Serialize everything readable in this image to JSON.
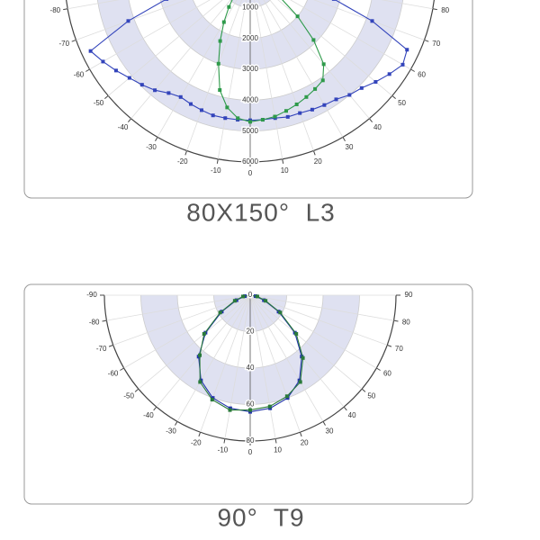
{
  "chart_data": [
    {
      "type": "polar",
      "title": "80X150°  L3",
      "x": [
        -75,
        -70,
        -65,
        -60,
        -55,
        -50,
        -45,
        -40,
        -35,
        -30,
        -25,
        -20,
        -15,
        -10,
        -5,
        0,
        5,
        10,
        15,
        20,
        25,
        30,
        35,
        40,
        45,
        50,
        55,
        60,
        65,
        70,
        75
      ],
      "series": [
        {
          "color": "#3344bb",
          "values": [
            2800,
            4200,
            5700,
            5500,
            5300,
            5100,
            4950,
            4800,
            4600,
            4500,
            4550,
            4600,
            4650,
            4650,
            4650,
            4650,
            4650,
            4650,
            4700,
            4700,
            4750,
            4800,
            4850,
            5000,
            5100,
            5300,
            5500,
            5700,
            5600,
            4200,
            2800
          ]
        },
        {
          "color": "#2e9a4a",
          "values": [
            null,
            null,
            null,
            null,
            null,
            null,
            null,
            800,
            1200,
            1700,
            2300,
            3000,
            3800,
            4300,
            4600,
            4700,
            4650,
            4600,
            4500,
            4400,
            4300,
            4200,
            4100,
            3700,
            2900,
            2000,
            1200,
            null,
            null,
            null,
            null
          ]
        }
      ],
      "ylim": [
        0,
        6000
      ],
      "yticks": [
        1000,
        2000,
        3000,
        4000,
        5000,
        6000
      ],
      "xticks": [
        -80,
        -70,
        -60,
        -50,
        -40,
        -30,
        -20,
        -10,
        0,
        10,
        20,
        30,
        40,
        50,
        60,
        70,
        80
      ]
    },
    {
      "type": "polar",
      "title": "90°  T9",
      "x": [
        -90,
        -80,
        -70,
        -60,
        -50,
        -40,
        -30,
        -20,
        -10,
        0,
        10,
        20,
        30,
        40,
        50,
        60,
        70,
        80,
        90
      ],
      "series": [
        {
          "color": "#2233aa",
          "values": [
            0,
            3,
            8,
            18,
            32,
            44,
            54,
            60,
            63,
            64,
            63,
            60,
            54,
            44,
            32,
            18,
            8,
            3,
            0
          ]
        },
        {
          "color": "#2a7a3a",
          "values": [
            0,
            4,
            9,
            19,
            33,
            43,
            55,
            61,
            64,
            63,
            62,
            59,
            55,
            45,
            33,
            19,
            9,
            4,
            0
          ]
        }
      ],
      "ylim": [
        0,
        80
      ],
      "yticks": [
        0,
        20,
        40,
        60,
        80
      ],
      "xticks": [
        -90,
        -80,
        -70,
        -60,
        -50,
        -40,
        -30,
        -20,
        -10,
        0,
        10,
        20,
        30,
        40,
        50,
        60,
        70,
        80,
        90
      ]
    }
  ]
}
